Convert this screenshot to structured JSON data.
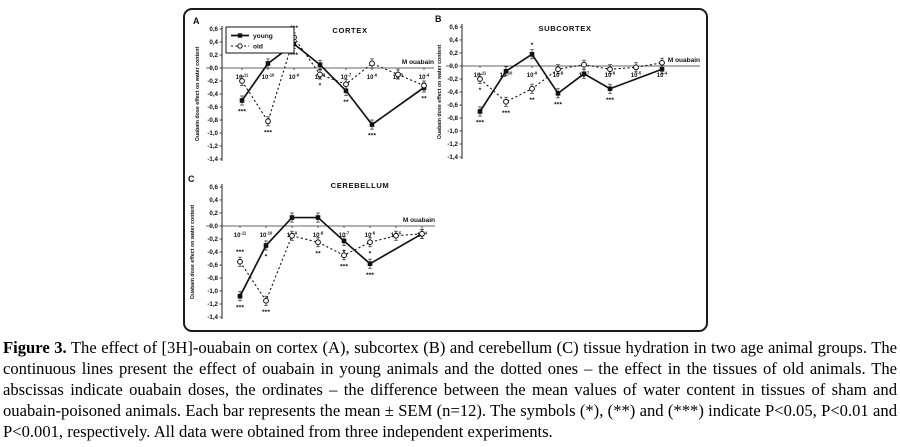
{
  "caption": {
    "label": "Figure 3.",
    "text": "The effect of [3H]-ouabain on cortex (A), subcortex (B) and cerebellum (C) tissue hydration in two age animal groups. The continuous lines present the effect of ouabain in young animals and the dotted ones – the effect in the tissues of old animals. The abscissas indicate ouabain doses, the ordinates – the difference between the mean values of water content in tissues of sham and ouabain-poisoned animals. Each bar represents the mean ± SEM (n=12). The symbols (*), (**) and (***) indicate P<0.05, P<0.01 and P<0.001, respectively. All data were obtained from three independent experiments."
  },
  "chart_data": [
    {
      "type": "line",
      "panel": "A",
      "title": "CORTEX",
      "xlabel": "M ouabain",
      "ylabel": "Ouabain dose effect on water content",
      "x_tick_base": "10",
      "x_tick_exponents": [
        -11,
        -10,
        -9,
        -8,
        -7,
        -6,
        -5,
        -4
      ],
      "ylim": [
        -1.4,
        0.6
      ],
      "ytick_labels": [
        "0,6",
        "0,4",
        "0,2",
        "0,0",
        "-0,2",
        "-0,4",
        "-0,6",
        "-0,8",
        "-1,0",
        "-1,2",
        "-1,4"
      ],
      "sem": 0.07,
      "grid": false,
      "legend": {
        "position": "upper-left",
        "items": [
          "young",
          "old"
        ]
      },
      "series": [
        {
          "name": "young",
          "line": "solid",
          "marker": "filled-square",
          "values": [
            -0.5,
            0.07,
            0.37,
            0.05,
            -0.35,
            -0.87,
            null,
            -0.3
          ],
          "sig": [
            "***",
            "",
            "***",
            "",
            "**",
            "***",
            "",
            "**"
          ],
          "sig_above": []
        },
        {
          "name": "old",
          "line": "dotted",
          "marker": "open-circle",
          "values": [
            -0.2,
            -0.82,
            0.47,
            -0.1,
            -0.25,
            0.07,
            -0.1,
            -0.27
          ],
          "sig": [
            "",
            "***",
            "***",
            "*",
            "",
            "",
            "",
            ""
          ],
          "sig_above": [
            2
          ]
        }
      ]
    },
    {
      "type": "line",
      "panel": "B",
      "title": "SUBCORTEX",
      "xlabel": "M ouabain",
      "ylabel": "Ouabain dose effect on water content",
      "x_tick_base": "10",
      "x_tick_exponents": [
        -11,
        -10,
        -9,
        -8,
        -7,
        -6,
        -5,
        -4
      ],
      "ylim": [
        -1.4,
        0.6
      ],
      "ytick_labels": [
        "0,6",
        "0,4",
        "0,2",
        "0,0",
        "-0,2",
        "-0,4",
        "-0,6",
        "-0,8",
        "-1,0",
        "-1,2",
        "-1,4"
      ],
      "sem": 0.07,
      "grid": false,
      "series": [
        {
          "name": "young",
          "line": "solid",
          "marker": "filled-square",
          "values": [
            -0.7,
            -0.08,
            0.18,
            -0.42,
            -0.12,
            -0.35,
            null,
            -0.05
          ],
          "sig": [
            "***",
            "",
            "*",
            "***",
            "",
            "***",
            "",
            ""
          ],
          "sig_above": [
            2
          ]
        },
        {
          "name": "old",
          "line": "dotted",
          "marker": "open-circle",
          "values": [
            -0.2,
            -0.55,
            -0.35,
            -0.05,
            0.02,
            -0.05,
            -0.02,
            0.05
          ],
          "sig": [
            "*",
            "***",
            "**",
            "",
            "",
            "",
            "",
            ""
          ],
          "sig_above": []
        }
      ]
    },
    {
      "type": "line",
      "panel": "C",
      "title": "CEREBELLUM",
      "xlabel": "M ouabain",
      "ylabel": "Ouabain dose effect on water content",
      "x_tick_base": "10",
      "x_tick_exponents": [
        -11,
        -10,
        -9,
        -8,
        -7,
        -6,
        -5,
        -4
      ],
      "ylim": [
        -1.4,
        0.6
      ],
      "ytick_labels": [
        "0,6",
        "0,4",
        "0,2",
        "0,0",
        "-0,2",
        "-0,4",
        "-0,6",
        "-0,8",
        "-1,0",
        "-1,2",
        "-1,4"
      ],
      "sem": 0.07,
      "grid": false,
      "series": [
        {
          "name": "young",
          "line": "solid",
          "marker": "filled-square",
          "values": [
            -1.08,
            -0.3,
            0.13,
            0.13,
            -0.23,
            -0.58,
            null,
            -0.12
          ],
          "sig": [
            "***",
            "*",
            "",
            "",
            "*",
            "***",
            "",
            ""
          ],
          "sig_above": []
        },
        {
          "name": "old",
          "line": "dotted",
          "marker": "open-circle",
          "values": [
            -0.55,
            -1.15,
            -0.15,
            -0.25,
            -0.45,
            -0.25,
            -0.15,
            -0.12
          ],
          "sig": [
            "***",
            "***",
            "",
            "**",
            "***",
            "*",
            "",
            ""
          ],
          "sig_above": [
            0
          ]
        }
      ]
    }
  ]
}
